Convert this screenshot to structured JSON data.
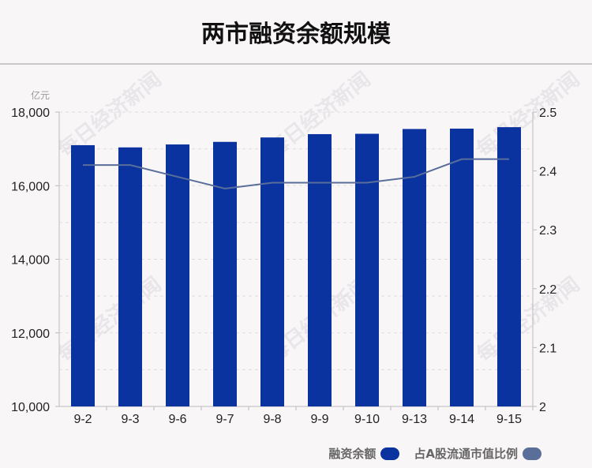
{
  "title": "两市融资余额规模",
  "watermark_text": "每日经济新闻",
  "chart_data": {
    "type": "bar",
    "categories": [
      "9-2",
      "9-3",
      "9-6",
      "9-7",
      "9-8",
      "9-9",
      "9-10",
      "9-13",
      "9-14",
      "9-15"
    ],
    "series": [
      {
        "name": "融资余额",
        "type": "bar",
        "axis": "left",
        "values": [
          17100,
          17040,
          17120,
          17190,
          17310,
          17400,
          17410,
          17540,
          17550,
          17590
        ]
      },
      {
        "name": "占A股流通市值比例",
        "type": "line",
        "axis": "right",
        "values": [
          2.41,
          2.41,
          2.39,
          2.37,
          2.38,
          2.38,
          2.38,
          2.39,
          2.42,
          2.42
        ]
      }
    ],
    "y_left": {
      "unit": "亿元",
      "lim": [
        10000,
        18000
      ],
      "ticks": [
        "10,000",
        "12,000",
        "14,000",
        "16,000",
        "18,000"
      ]
    },
    "y_right": {
      "lim": [
        2.0,
        2.5
      ],
      "ticks": [
        "2",
        "2.1",
        "2.2",
        "2.3",
        "2.4",
        "2.5"
      ]
    },
    "grid": true,
    "legend_position": "bottom-right"
  },
  "colors": {
    "bar": "#0b33a0",
    "line": "#5a6e9a",
    "grid": "#dddddd",
    "axis": "#bbbbbb"
  }
}
